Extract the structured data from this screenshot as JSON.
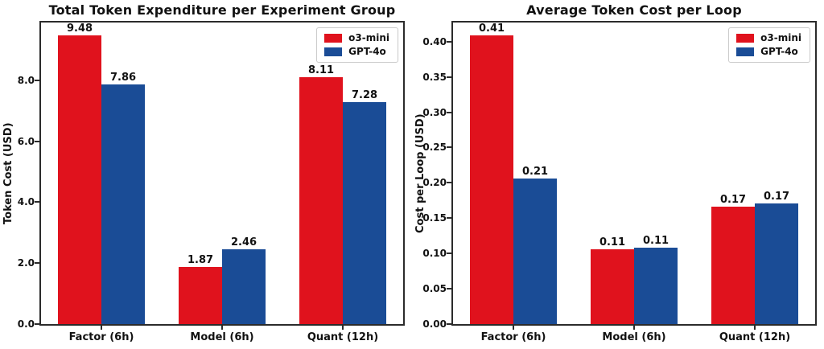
{
  "figure": {
    "background": "#ffffff",
    "spine_color": "#2b2b2b",
    "text_color": "#111111"
  },
  "colors": {
    "o3_mini": "#e0121d",
    "gpt_4o": "#1a4c96"
  },
  "chart_data": [
    {
      "type": "bar",
      "title": "Total Token Expenditure per Experiment Group",
      "xlabel": "",
      "ylabel": "Token Cost (USD)",
      "categories": [
        "Factor (6h)",
        "Model (6h)",
        "Quant (12h)"
      ],
      "series": [
        {
          "name": "o3-mini",
          "color": "#e0121d",
          "values": [
            9.48,
            1.87,
            8.11
          ],
          "value_labels": [
            "9.48",
            "1.87",
            "8.11"
          ]
        },
        {
          "name": "GPT-4o",
          "color": "#1a4c96",
          "values": [
            7.86,
            2.46,
            7.28
          ],
          "value_labels": [
            "7.86",
            "2.46",
            "7.28"
          ]
        }
      ],
      "ylim": [
        0,
        9.9
      ],
      "yticks": [
        0,
        2,
        4,
        6,
        8
      ],
      "ytick_labels": [
        "0.0",
        "2.0",
        "4.0",
        "6.0",
        "8.0"
      ],
      "grid": false,
      "legend_position": "upper right"
    },
    {
      "type": "bar",
      "title": "Average Token Cost per Loop",
      "xlabel": "",
      "ylabel": "Cost per Loop (USD)",
      "categories": [
        "Factor (6h)",
        "Model (6h)",
        "Quant (12h)"
      ],
      "series": [
        {
          "name": "o3-mini",
          "color": "#e0121d",
          "values": [
            0.41,
            0.11,
            0.17
          ],
          "values_precise": [
            0.409,
            0.106,
            0.166
          ],
          "value_labels": [
            "0.41",
            "0.11",
            "0.17"
          ]
        },
        {
          "name": "GPT-4o",
          "color": "#1a4c96",
          "values": [
            0.21,
            0.11,
            0.17
          ],
          "values_precise": [
            0.206,
            0.108,
            0.171
          ],
          "value_labels": [
            "0.21",
            "0.11",
            "0.17"
          ]
        }
      ],
      "ylim": [
        0,
        0.427
      ],
      "yticks": [
        0.0,
        0.05,
        0.1,
        0.15,
        0.2,
        0.25,
        0.3,
        0.35,
        0.4
      ],
      "ytick_labels": [
        "0.00",
        "0.05",
        "0.10",
        "0.15",
        "0.20",
        "0.25",
        "0.30",
        "0.35",
        "0.40"
      ],
      "grid": false,
      "legend_position": "upper right"
    }
  ]
}
